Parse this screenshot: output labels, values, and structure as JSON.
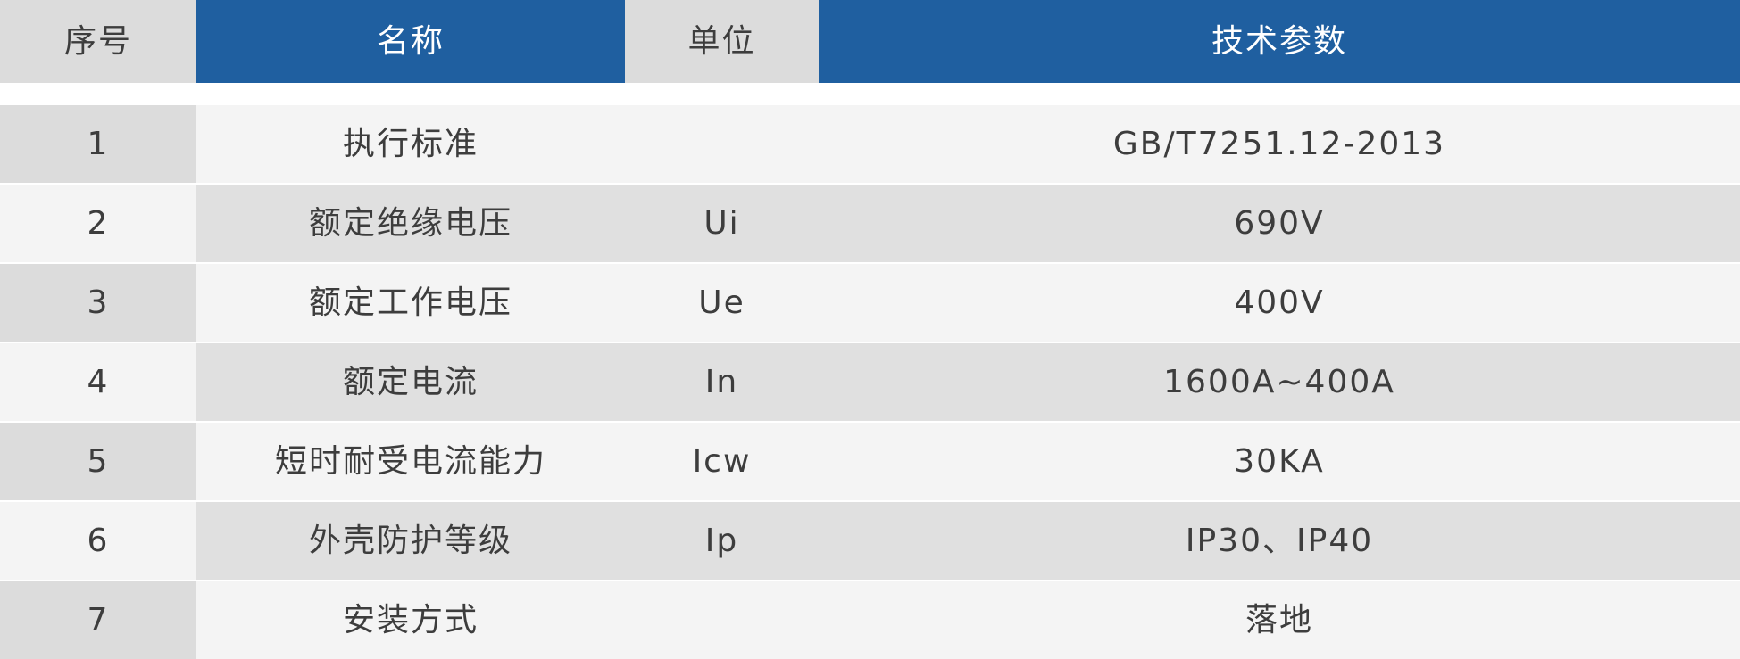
{
  "table": {
    "columns": [
      "序号",
      "名称",
      "单位",
      "技术参数"
    ],
    "rows": [
      {
        "no": "1",
        "name": "执行标准",
        "unit": "",
        "value": "GB/T7251.12-2013"
      },
      {
        "no": "2",
        "name": "额定绝缘电压",
        "unit": "Ui",
        "value": "690V"
      },
      {
        "no": "3",
        "name": "额定工作电压",
        "unit": "Ue",
        "value": "400V"
      },
      {
        "no": "4",
        "name": "额定电流",
        "unit": "In",
        "value": "1600A~400A"
      },
      {
        "no": "5",
        "name": "短时耐受电流能力",
        "unit": "Icw",
        "value": "30KA"
      },
      {
        "no": "6",
        "name": "外壳防护等级",
        "unit": "Ip",
        "value": "IP30、IP40"
      },
      {
        "no": "7",
        "name": "安装方式",
        "unit": "",
        "value": "落地"
      }
    ],
    "colors": {
      "header_blue": "#1f5fa0",
      "header_gray": "#dcdcdc",
      "row_light": "#f4f4f4",
      "row_dark": "#e0e0e0",
      "text": "#3d3d3d"
    }
  }
}
